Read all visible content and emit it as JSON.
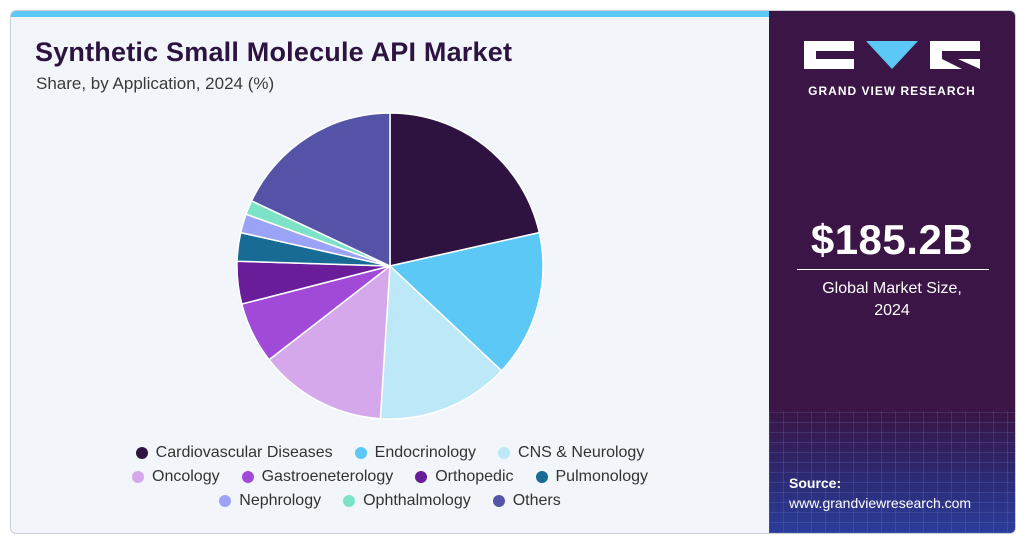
{
  "header": {
    "title": "Synthetic Small Molecule API Market",
    "subtitle": "Share, by Application, 2024 (%)"
  },
  "chart_data": {
    "type": "pie",
    "title": "Synthetic Small Molecule API Market",
    "subtitle": "Share, by Application, 2024 (%)",
    "legend_position": "bottom",
    "categories": [
      "Cardiovascular Diseases",
      "Endocrinology",
      "CNS & Neurology",
      "Oncology",
      "Gastroeneterology",
      "Orthopedic",
      "Pulmonology",
      "Nephrology",
      "Ophthalmology",
      "Others"
    ],
    "values": [
      21.5,
      15.5,
      14.0,
      13.5,
      6.5,
      4.5,
      3.0,
      2.0,
      1.5,
      18.0
    ],
    "colors": [
      "#2e1240",
      "#5bc8f5",
      "#bde8f7",
      "#d5a8ec",
      "#a04ad7",
      "#6a1d98",
      "#176b95",
      "#9ba3f7",
      "#7de3c8",
      "#5553a8"
    ]
  },
  "legend": {
    "rows": [
      [
        0,
        1,
        2
      ],
      [
        3,
        4,
        5,
        6
      ],
      [
        7,
        8,
        9
      ]
    ]
  },
  "sidebar": {
    "brand": "GRAND VIEW RESEARCH",
    "market_value": "$185.2B",
    "caption_line1": "Global Market Size,",
    "caption_line2": "2024",
    "source_label": "Source:",
    "source_url": "www.grandviewresearch.com"
  },
  "colors": {
    "sidebar_bg": "#3a1545",
    "accent": "#5bc8f5",
    "title": "#2d1440"
  }
}
